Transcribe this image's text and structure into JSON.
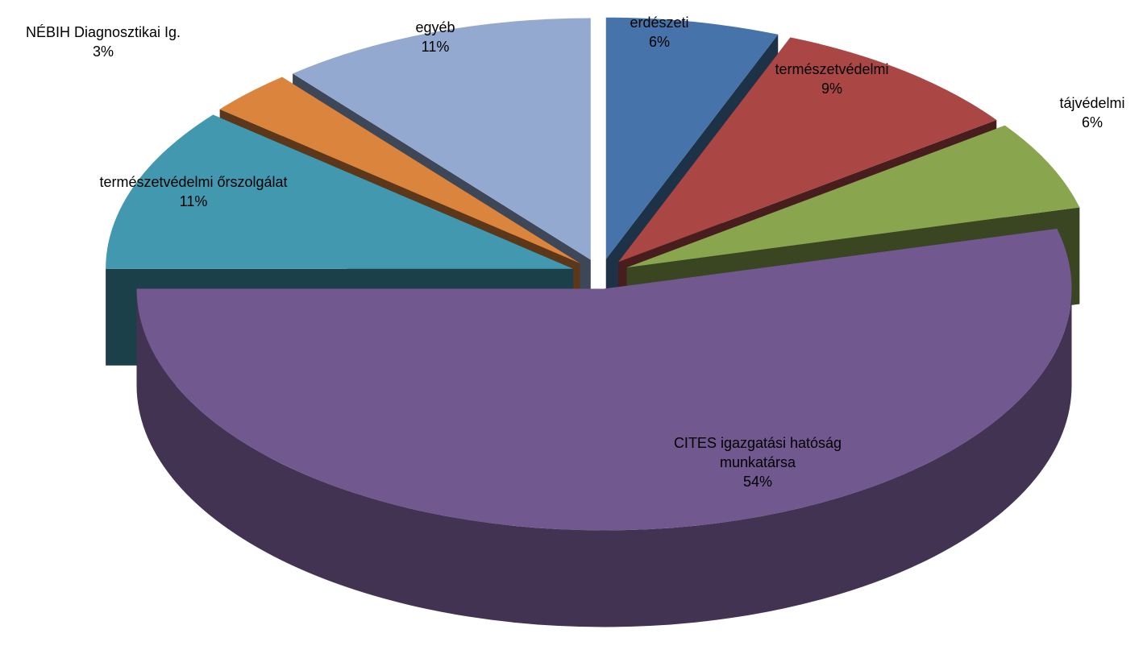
{
  "chart_data": {
    "type": "pie3d",
    "categories": [
      "erdészeti",
      "természetvédelmi",
      "tájvédelmi",
      "CITES igazgatási hatóság munkatársa",
      "természetvédelmi őrszolgálat",
      "NÉBIH Diagnosztikai Ig.",
      "egyéb"
    ],
    "values": [
      6,
      9,
      6,
      54,
      11,
      3,
      11
    ],
    "value_labels": [
      "6%",
      "9%",
      "6%",
      "54%",
      "11%",
      "3%",
      "11%"
    ],
    "colors": [
      "#4674aa",
      "#aa4644",
      "#89a54e",
      "#71588f",
      "#4198af",
      "#db843d",
      "#93a9cf"
    ]
  }
}
